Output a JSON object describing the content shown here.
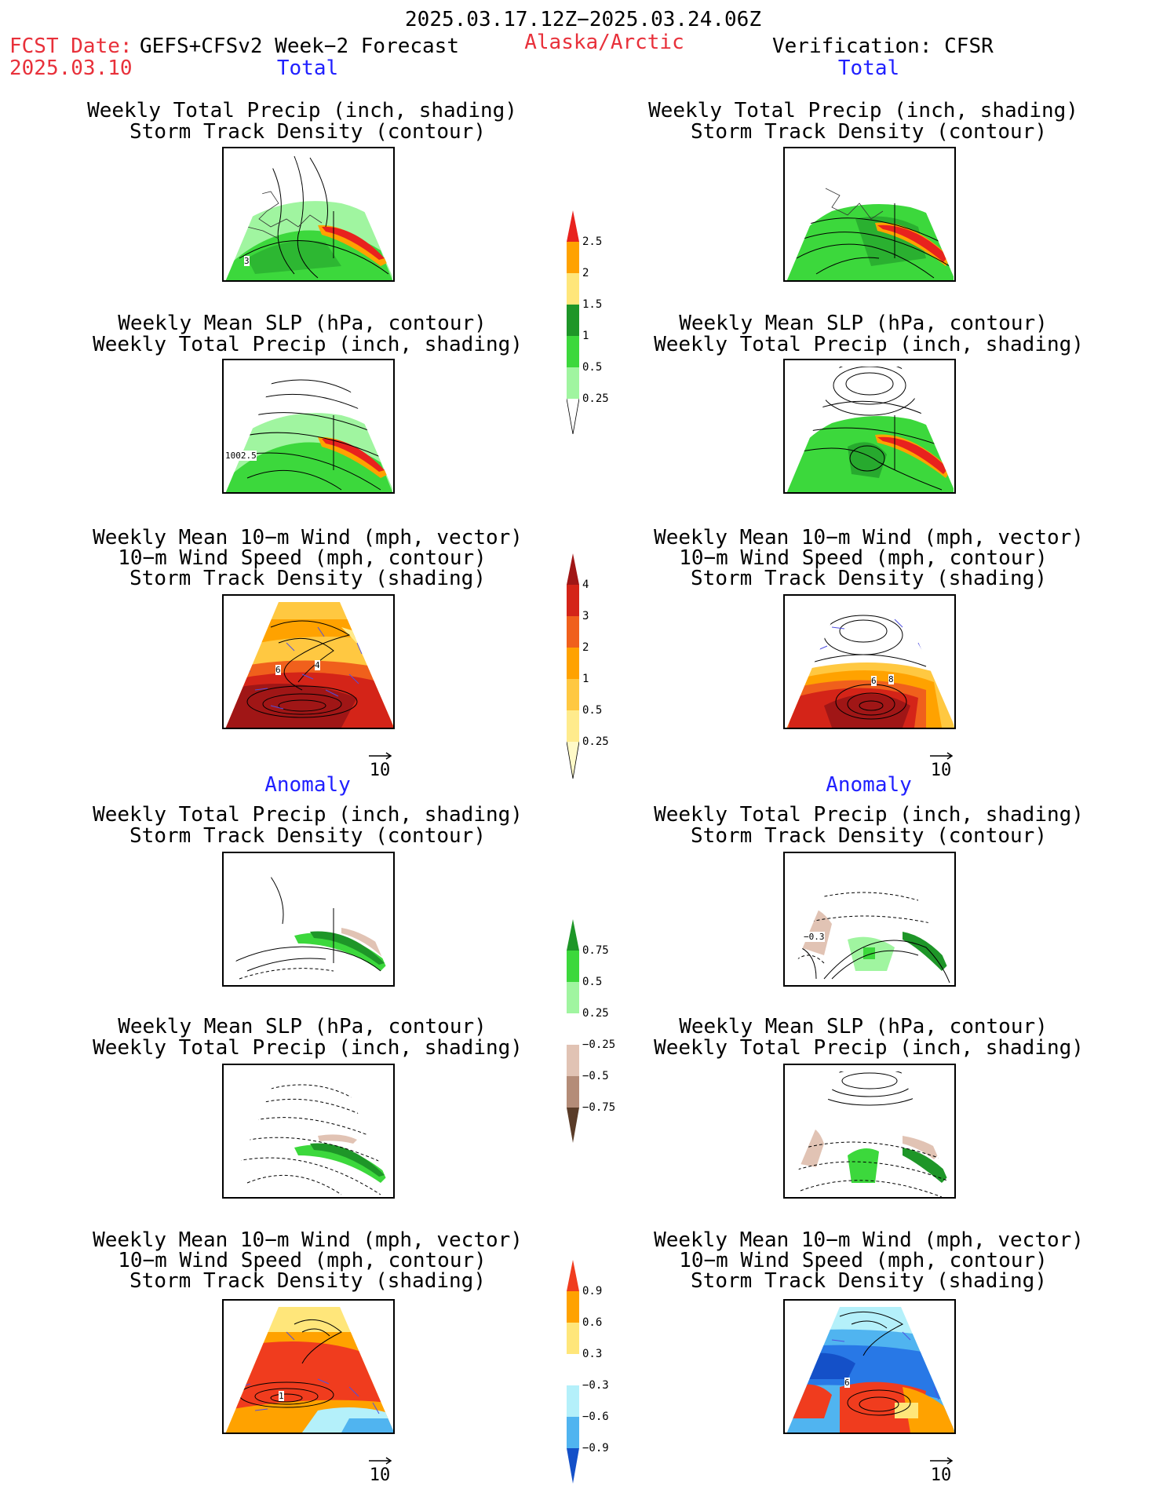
{
  "header": {
    "period": "2025.03.17.12Z−2025.03.24.06Z",
    "fcst_label": "FCST Date:",
    "fcst_product": "GEFS+CFSv2 Week−2 Forecast",
    "fcst_date": "2025.03.10",
    "region": "Alaska/Arctic",
    "verification": "Verification: CFSR"
  },
  "sections": {
    "total": "Total",
    "anomaly": "Anomaly"
  },
  "titles": {
    "precip_storm": [
      "Weekly Total Precip (inch, shading)",
      "Storm Track Density (contour)"
    ],
    "slp_precip": [
      "Weekly Mean SLP (hPa, contour)",
      "Weekly Total Precip (inch, shading)"
    ],
    "wind_storm": [
      "Weekly Mean 10−m Wind (mph, vector)",
      "10−m Wind Speed (mph, contour)",
      "Storm Track Density (shading)"
    ]
  },
  "panel_labels": {
    "p1_left": "3",
    "p2_left": "1002.5",
    "p3_left_a": "6",
    "p3_left_b": "4",
    "p3_right_a": "6",
    "p3_right_b": "8",
    "p4_right": "−0.3",
    "p6_left": "1",
    "p6_right": "6"
  },
  "vector_scale": "10",
  "colorbars": {
    "total_precip": {
      "labels": [
        "2.5",
        "2",
        "1.5",
        "1",
        "0.5",
        "0.25"
      ],
      "colors": [
        "#e8221e",
        "#ffa200",
        "#ffe67a",
        "#1e9628",
        "#3cd83c",
        "#a0f5a0"
      ]
    },
    "total_storm": {
      "labels": [
        "4",
        "3",
        "2",
        "1",
        "0.5",
        "0.25"
      ],
      "colors": [
        "#a01616",
        "#d42418",
        "#f0601c",
        "#ffa200",
        "#ffc841",
        "#ffeb8c",
        "#fffac8"
      ]
    },
    "anom_precip": {
      "labels": [
        "0.75",
        "0.5",
        "0.25",
        "−0.25",
        "−0.5",
        "−0.75"
      ],
      "colors": [
        "#1e9628",
        "#3cd83c",
        "#a0f5a0",
        "#ffffff",
        "#e1c3b4",
        "#b48c78",
        "#8c644b",
        "#5a3c28"
      ]
    },
    "anom_storm": {
      "labels": [
        "0.9",
        "0.6",
        "0.3",
        "−0.3",
        "−0.6",
        "−0.9"
      ],
      "colors": [
        "#f03c1e",
        "#ffa200",
        "#ffe67a",
        "#ffffff",
        "#b4f0fa",
        "#50b4f0",
        "#2878e6",
        "#1450c8"
      ]
    }
  }
}
